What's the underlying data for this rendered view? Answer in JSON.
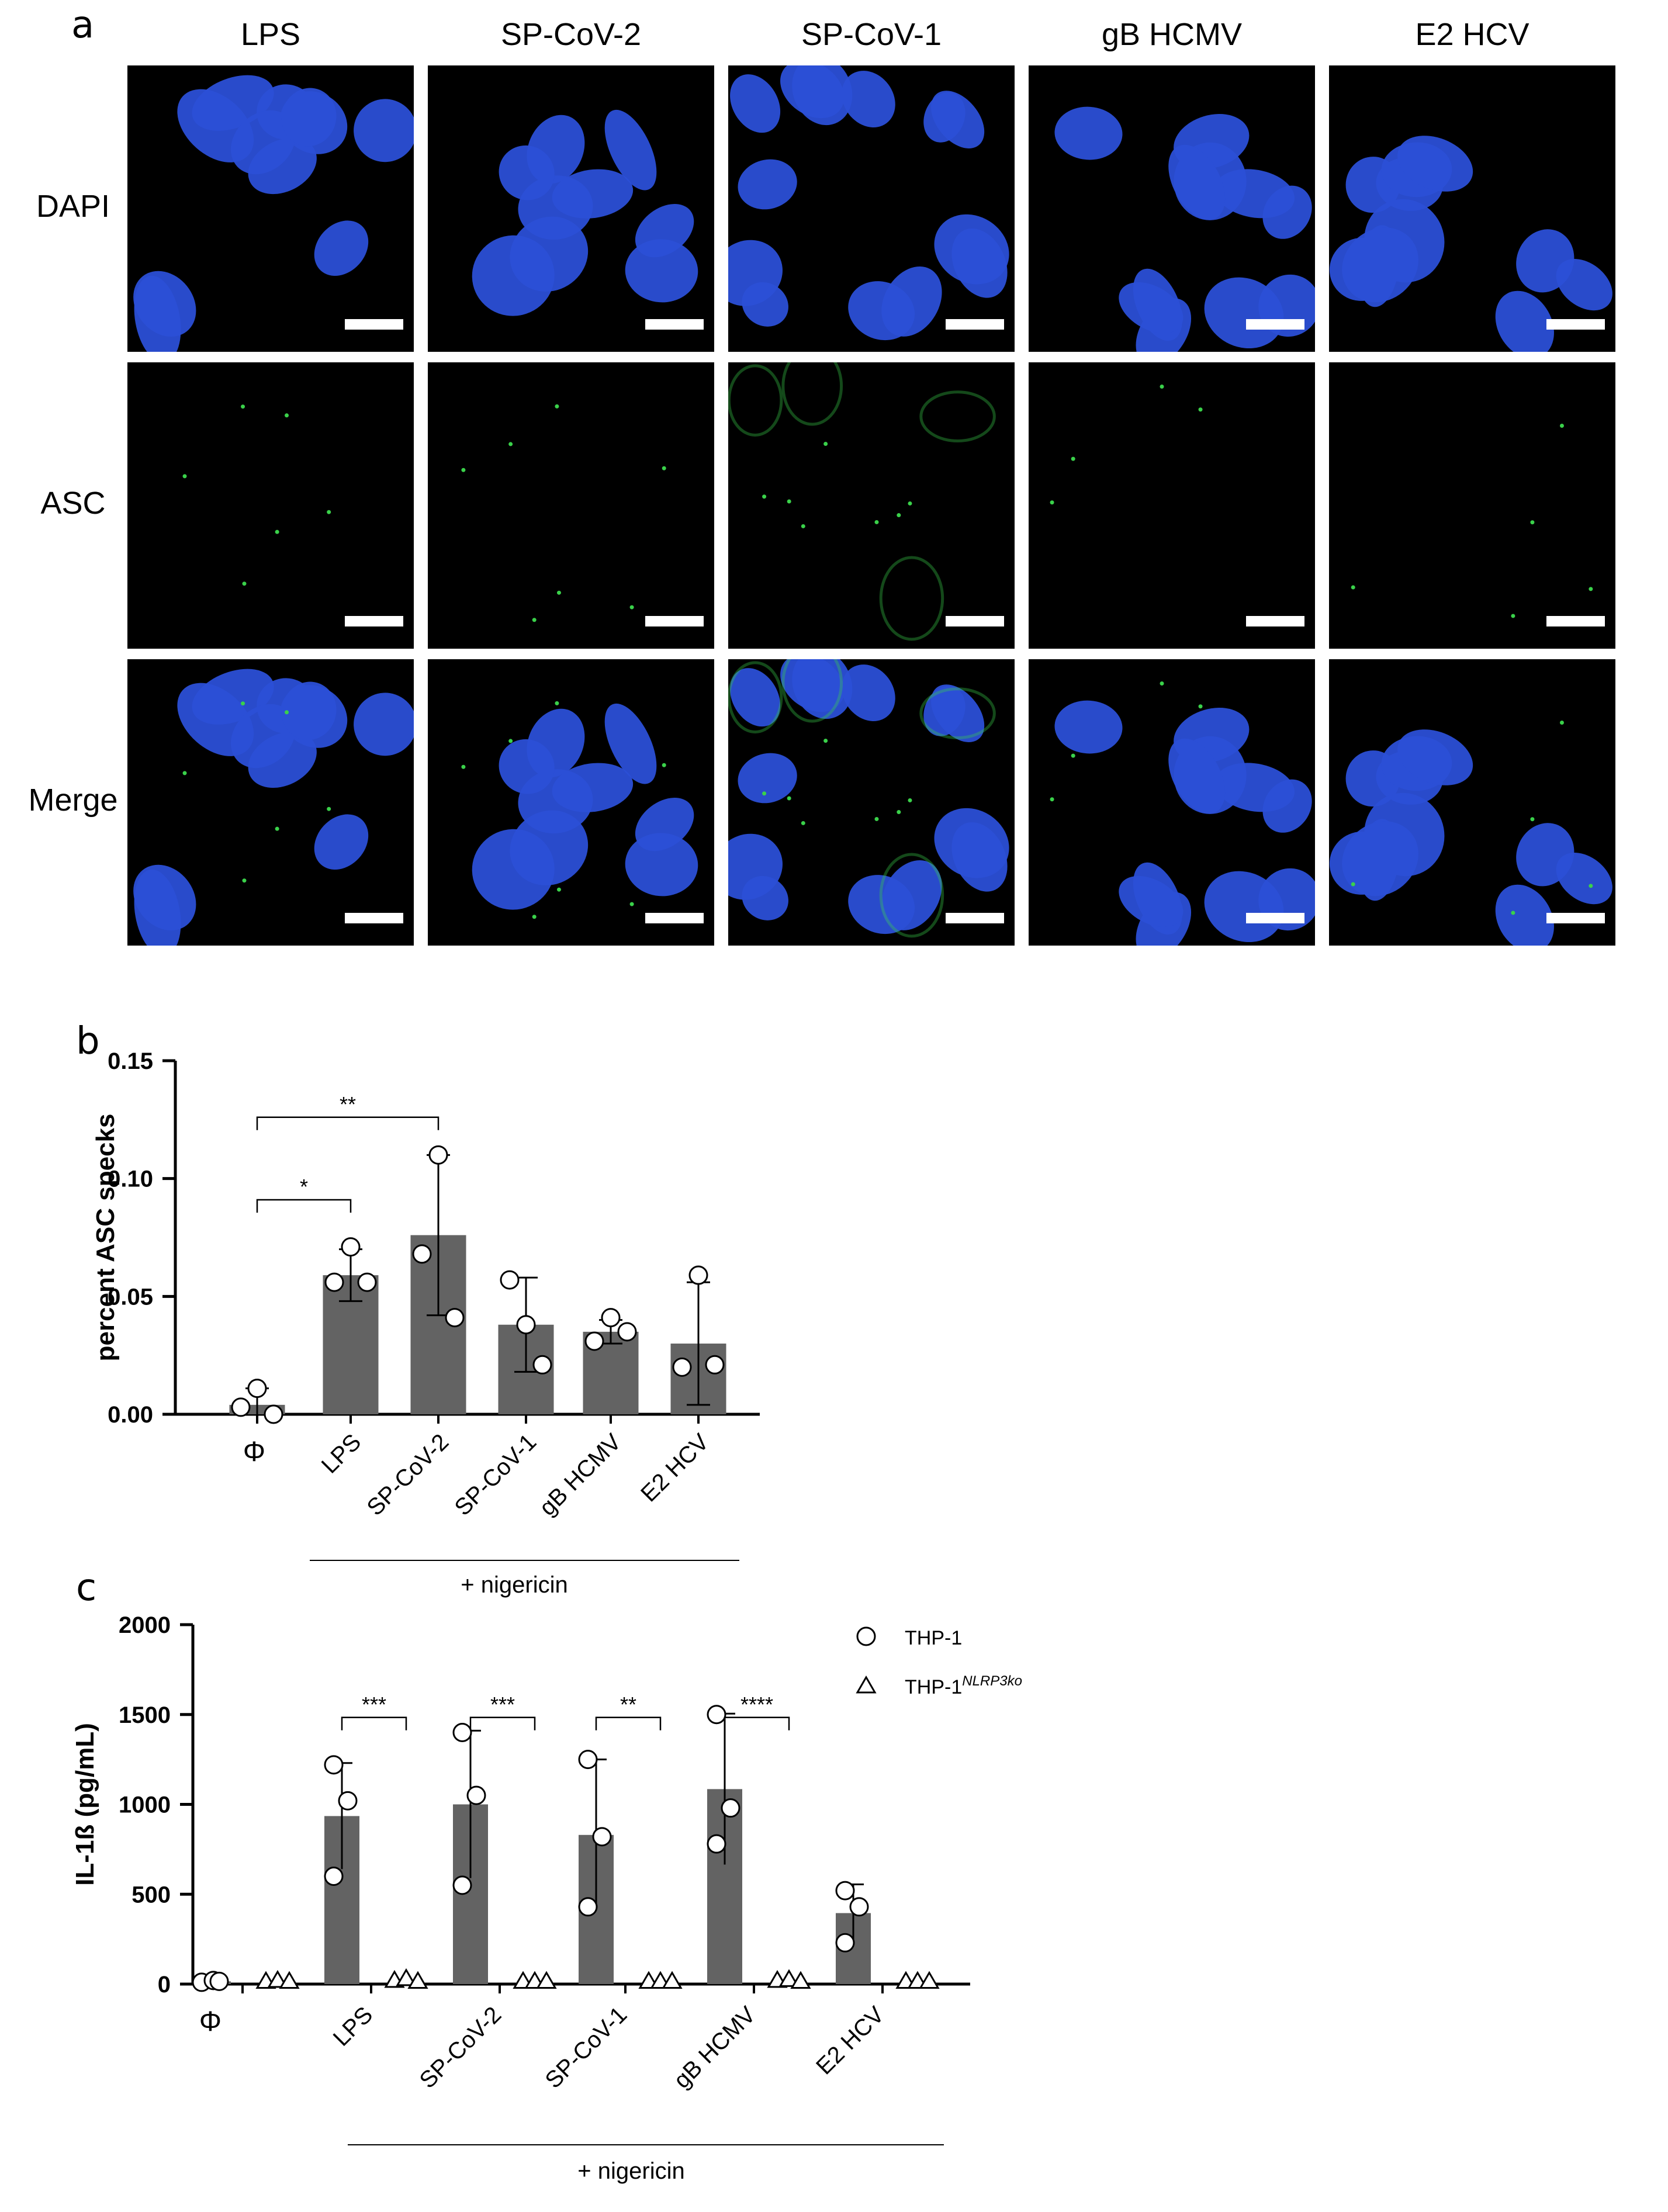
{
  "panel_labels": {
    "a": "a",
    "b": "b",
    "c": "c"
  },
  "micrographs": {
    "columns": [
      "LPS",
      "SP-CoV-2",
      "SP-CoV-1",
      "gB HCMV",
      "E2 HCV"
    ],
    "rows": [
      "DAPI",
      "ASC",
      "Merge"
    ],
    "colors": {
      "dapi": "#2b4fd6",
      "asc": "#3ad14a",
      "background": "#000000"
    }
  },
  "chart_data": [
    {
      "type": "bar",
      "panel": "b",
      "categories": [
        "Φ",
        "LPS",
        "SP-CoV-2",
        "SP-CoV-1",
        "gB HCMV",
        "E2 HCV"
      ],
      "values": [
        0.004,
        0.059,
        0.076,
        0.038,
        0.035,
        0.03
      ],
      "errors": [
        0.007,
        0.011,
        0.034,
        0.02,
        0.005,
        0.026
      ],
      "points": [
        [
          0.003,
          0.011,
          0.0
        ],
        [
          0.056,
          0.071,
          0.056
        ],
        [
          0.068,
          0.11,
          0.041
        ],
        [
          0.057,
          0.038,
          0.021
        ],
        [
          0.031,
          0.041,
          0.035
        ],
        [
          0.02,
          0.059,
          0.021
        ]
      ],
      "ylabel": "percent ASC specks",
      "ylim": [
        0,
        0.15
      ],
      "yticks": [
        "0.00",
        "0.05",
        "0.10",
        "0.15"
      ],
      "bracket_label": "+ nigericin",
      "significance": [
        {
          "from": "Φ",
          "to": "LPS",
          "label": "*"
        },
        {
          "from": "Φ",
          "to": "SP-CoV-2",
          "label": "**"
        }
      ],
      "bar_color": "#636363"
    },
    {
      "type": "bar",
      "panel": "c",
      "categories": [
        "Φ",
        "LPS",
        "SP-CoV-2",
        "SP-CoV-1",
        "gB HCMV",
        "E2 HCV"
      ],
      "series": [
        {
          "name": "THP-1",
          "marker": "circle",
          "values": [
            15,
            935,
            1000,
            830,
            1085,
            395
          ],
          "errors": [
            10,
            295,
            410,
            420,
            420,
            160
          ],
          "points": [
            [
              10,
              20,
              15
            ],
            [
              1220,
              1020,
              600
            ],
            [
              1400,
              1050,
              550
            ],
            [
              1250,
              820,
              430
            ],
            [
              1500,
              980,
              780
            ],
            [
              520,
              430,
              230
            ]
          ]
        },
        {
          "name": "THP-1",
          "name_sup": "NLRP3ko",
          "marker": "triangle",
          "values": [
            5,
            10,
            5,
            5,
            10,
            5
          ],
          "errors": [
            0,
            0,
            0,
            0,
            0,
            0
          ],
          "points": [
            [
              5,
              10,
              5
            ],
            [
              10,
              20,
              5
            ],
            [
              5,
              5,
              5
            ],
            [
              5,
              5,
              5
            ],
            [
              10,
              15,
              5
            ],
            [
              5,
              5,
              5
            ]
          ]
        }
      ],
      "ylabel": "IL-1ß (pg/mL)",
      "ylim": [
        0,
        2000
      ],
      "yticks": [
        "0",
        "500",
        "1000",
        "1500",
        "2000"
      ],
      "bracket_label": "+ nigericin",
      "significance": [
        {
          "category": "LPS",
          "label": "***"
        },
        {
          "category": "SP-CoV-2",
          "label": "***"
        },
        {
          "category": "SP-CoV-1",
          "label": "**"
        },
        {
          "category": "gB HCMV",
          "label": "****"
        }
      ],
      "legend_position": "top-right",
      "bar_color": "#636363"
    }
  ]
}
